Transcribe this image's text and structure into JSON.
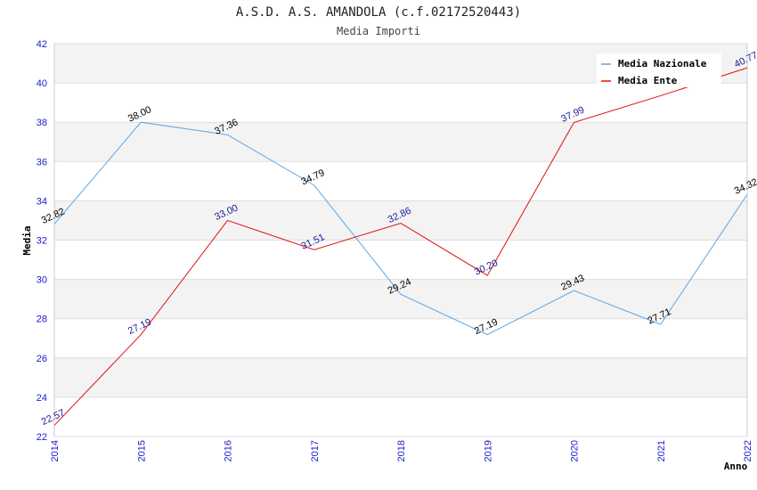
{
  "chart_data": {
    "type": "line",
    "title": "A.S.D. A.S. AMANDOLA (c.f.02172520443)",
    "subtitle": "Media Importi",
    "xlabel": "Anno",
    "ylabel": "Media",
    "ylim": [
      22,
      42
    ],
    "yticks": [
      "22",
      "24",
      "26",
      "28",
      "30",
      "32",
      "34",
      "36",
      "38",
      "40",
      "42"
    ],
    "categories": [
      "2014",
      "2015",
      "2016",
      "2017",
      "2018",
      "2019",
      "2020",
      "2021",
      "2022"
    ],
    "series": [
      {
        "name": "Media Nazionale",
        "color": "#5aa6e6",
        "label_color": "#000000",
        "values": [
          32.82,
          38.0,
          37.36,
          34.79,
          29.24,
          27.19,
          29.43,
          27.71,
          34.32
        ],
        "labels": [
          "32.82",
          "38.00",
          "37.36",
          "34.79",
          "29.24",
          "27.19",
          "29.43",
          "27.71",
          "34.32"
        ]
      },
      {
        "name": "Media Ente",
        "color": "#e01010",
        "label_color": "#1a1a99",
        "values": [
          22.57,
          27.19,
          33.0,
          31.51,
          32.86,
          30.2,
          37.99,
          39.35,
          40.77
        ],
        "labels": [
          "22.57",
          "27.19",
          "33.00",
          "31.51",
          "32.86",
          "30.20",
          "37.99",
          "",
          "40.77"
        ]
      }
    ],
    "legend": "top-right",
    "grid": true
  }
}
